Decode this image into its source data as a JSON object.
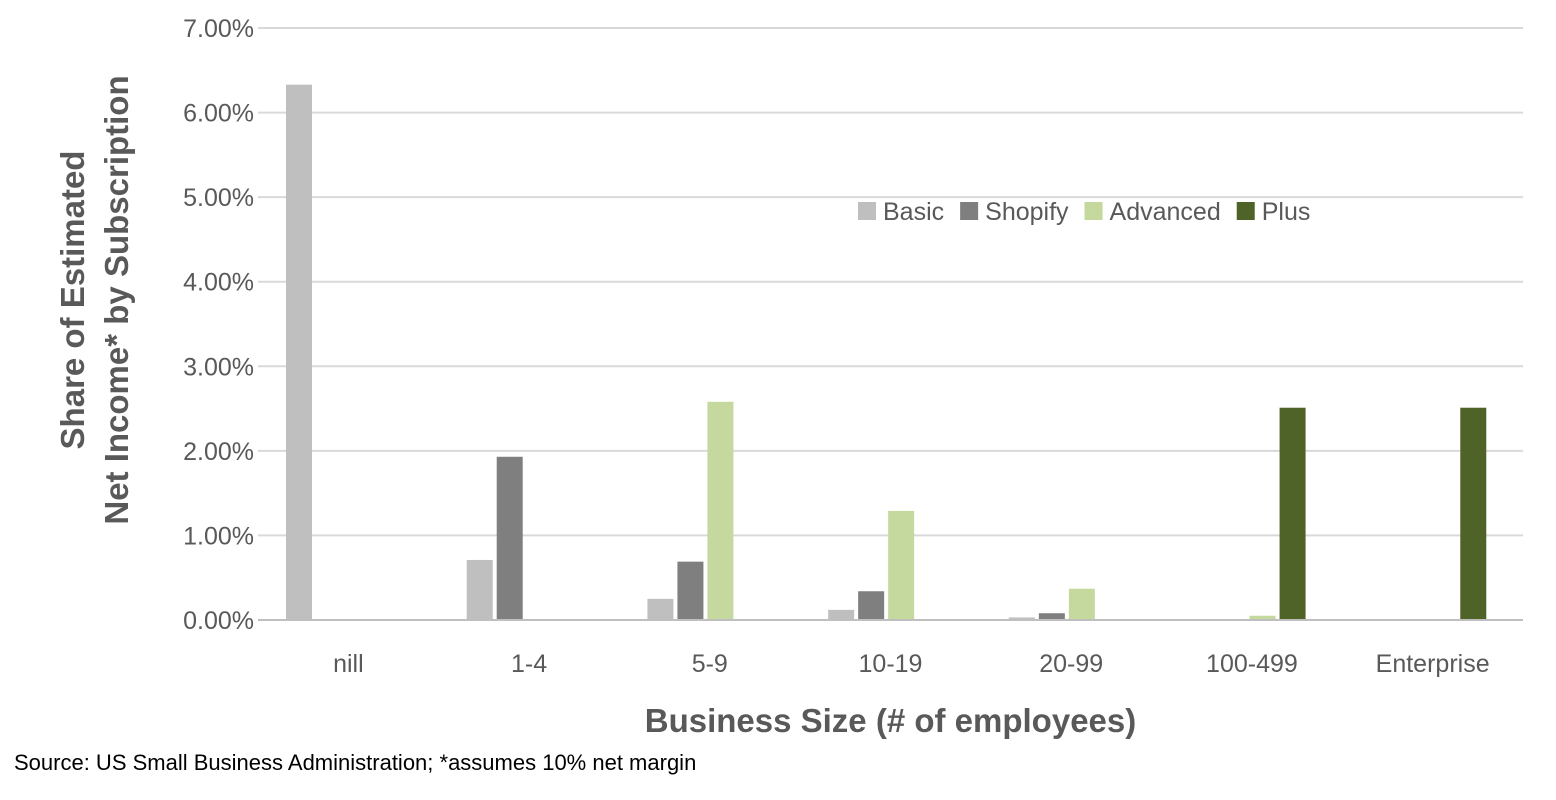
{
  "chart_data": {
    "type": "bar",
    "title": "",
    "xlabel": "Business Size (# of employees)",
    "ylabel_lines": [
      "Share of Estimated",
      "Net Income* by Subscription"
    ],
    "categories": [
      "nill",
      "1-4",
      "5-9",
      "10-19",
      "20-99",
      "100-499",
      "Enterprise"
    ],
    "ylim": [
      0,
      0.07
    ],
    "y_ticks": [
      "0.00%",
      "1.00%",
      "2.00%",
      "3.00%",
      "4.00%",
      "5.00%",
      "6.00%",
      "7.00%"
    ],
    "y_format": "percent",
    "grid": true,
    "legend_position": "top-right",
    "series": [
      {
        "name": "Basic",
        "color": "#bfbfbf",
        "values": [
          0.0633,
          0.0071,
          0.0025,
          0.0012,
          0.0003,
          0,
          0
        ]
      },
      {
        "name": "Shopify",
        "color": "#7f7f7f",
        "values": [
          0,
          0.0193,
          0.0069,
          0.0034,
          0.0008,
          0,
          0
        ]
      },
      {
        "name": "Advanced",
        "color": "#c5d89d",
        "values": [
          0,
          0,
          0.0258,
          0.0129,
          0.0037,
          0.0005,
          0
        ]
      },
      {
        "name": "Plus",
        "color": "#4f6228",
        "values": [
          0,
          0,
          0,
          0,
          0,
          0.0251,
          0.0251
        ]
      }
    ]
  },
  "source_note": "Source: US Small Business Administration; *assumes 10% net margin"
}
